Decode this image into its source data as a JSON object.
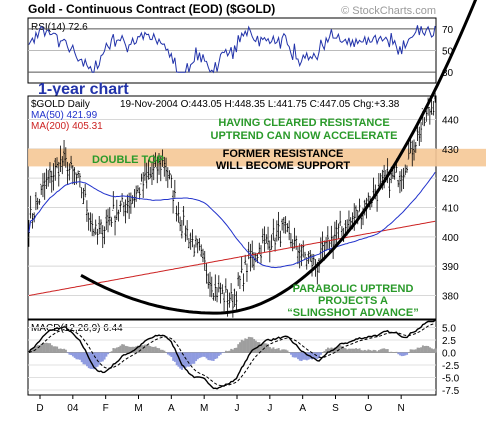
{
  "header": {
    "title": "Gold - Continuous Contract (EOD) ($GOLD)",
    "watermark": "© StockCharts.com"
  },
  "rsi": {
    "label": "RSI(14) 72.6",
    "ticks": [
      "70",
      "50",
      "30"
    ],
    "chart_label": "1-year chart",
    "color": "#2233aa"
  },
  "price": {
    "symbol": "$GOLD Daily",
    "ohlc": "19-Nov-2004  O:443.05  H:448.35  L:441.75  C:447.05  Chg:+3.38",
    "ma50_label": "MA(50) 421.99",
    "ma200_label": "MA(200) 405.31",
    "ma50_color": "#2233cc",
    "ma200_color": "#cc2222",
    "ticks": [
      "440",
      "430",
      "420",
      "410",
      "400",
      "390",
      "380"
    ]
  },
  "annotations": {
    "resistance_cleared": [
      "HAVING CLEARED RESISTANCE",
      "UPTREND CAN NOW ACCELERATE"
    ],
    "double_top": "DOUBLE TOP",
    "former_resistance": [
      "FORMER RESISTANCE",
      "WILL BECOME SUPPORT"
    ],
    "parabolic": [
      "PARABOLIC UPTREND",
      "PROJECTS A",
      "“SLINGSHOT ADVANCE”"
    ],
    "band_color": "#f5c896",
    "text_color": "#2a9a2a"
  },
  "macd": {
    "label": "MACD(12,26,9) 6.44",
    "ticks": [
      "5.0",
      "2.5",
      "0.0",
      "-2.5",
      "-5.0",
      "-7.5"
    ]
  },
  "xaxis": {
    "labels": [
      "D",
      "04",
      "F",
      "M",
      "A",
      "M",
      "J",
      "J",
      "A",
      "S",
      "O",
      "N"
    ]
  },
  "chart_data": [
    {
      "type": "line",
      "name": "RSI(14)",
      "ylim": [
        20,
        80
      ],
      "ticks": [
        70,
        50,
        30
      ],
      "last": 72.6
    },
    {
      "type": "candlestick",
      "title": "Gold - Continuous Contract (EOD) ($GOLD)",
      "ylim": [
        372,
        448
      ],
      "ticks": [
        440,
        430,
        420,
        410,
        400,
        390,
        380
      ],
      "months": [
        "D",
        "04",
        "F",
        "M",
        "A",
        "M",
        "J",
        "J",
        "A",
        "S",
        "O",
        "N"
      ],
      "close_path": [
        {
          "m": "D",
          "v": 405
        },
        {
          "m": "D",
          "v": 418
        },
        {
          "m": "04",
          "v": 426
        },
        {
          "m": "04",
          "v": 418
        },
        {
          "m": "F",
          "v": 400
        },
        {
          "m": "F",
          "v": 408
        },
        {
          "m": "M",
          "v": 412
        },
        {
          "m": "M",
          "v": 420
        },
        {
          "m": "A",
          "v": 426
        },
        {
          "m": "A",
          "v": 405
        },
        {
          "m": "A",
          "v": 395
        },
        {
          "m": "M",
          "v": 382
        },
        {
          "m": "M",
          "v": 378
        },
        {
          "m": "J",
          "v": 392
        },
        {
          "m": "J",
          "v": 398
        },
        {
          "m": "J",
          "v": 402
        },
        {
          "m": "J",
          "v": 395
        },
        {
          "m": "A",
          "v": 390
        },
        {
          "m": "A",
          "v": 400
        },
        {
          "m": "S",
          "v": 405
        },
        {
          "m": "S",
          "v": 412
        },
        {
          "m": "O",
          "v": 418
        },
        {
          "m": "O",
          "v": 422
        },
        {
          "m": "N",
          "v": 435
        },
        {
          "m": "N",
          "v": 447.05
        }
      ],
      "series": [
        {
          "name": "MA(50)",
          "last": 421.99
        },
        {
          "name": "MA(200)",
          "last": 405.31
        }
      ],
      "resistance_band": [
        424,
        430
      ],
      "last_ohlc": {
        "date": "19-Nov-2004",
        "open": 443.05,
        "high": 448.35,
        "low": 441.75,
        "close": 447.05,
        "change": 3.38
      }
    },
    {
      "type": "line",
      "name": "MACD(12,26,9)",
      "ylim": [
        -8.5,
        6.5
      ],
      "ticks": [
        5.0,
        2.5,
        0.0,
        -2.5,
        -5.0,
        -7.5
      ],
      "last": 6.44
    }
  ]
}
